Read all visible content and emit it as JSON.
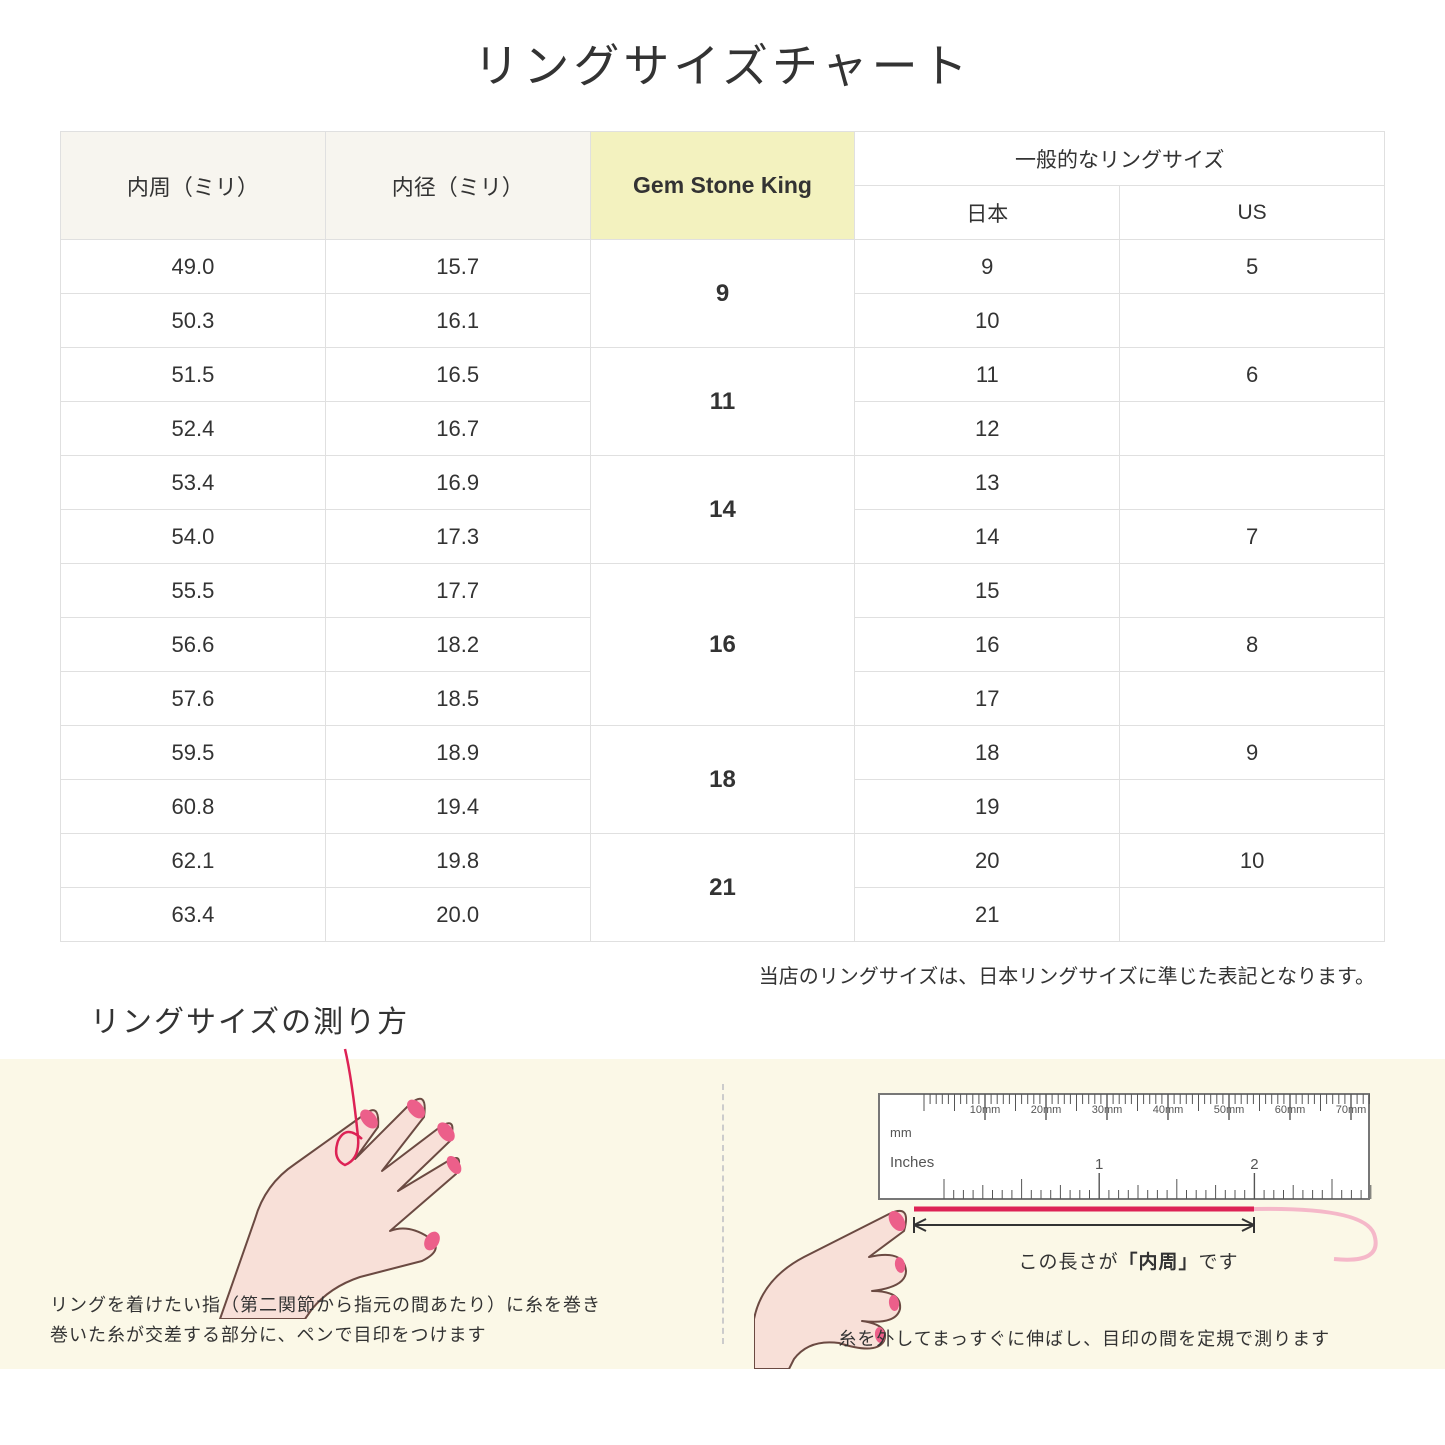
{
  "title": "リングサイズチャート",
  "table": {
    "headers": {
      "circumference": "内周（ミリ）",
      "diameter": "内径（ミリ）",
      "gsk": "Gem Stone King",
      "general": "一般的なリングサイズ",
      "japan": "日本",
      "us": "US"
    },
    "groups": [
      {
        "gsk": "9",
        "rows": [
          {
            "c": "49.0",
            "d": "15.7",
            "jp": "9",
            "us": "5"
          },
          {
            "c": "50.3",
            "d": "16.1",
            "jp": "10",
            "us": ""
          }
        ]
      },
      {
        "gsk": "11",
        "rows": [
          {
            "c": "51.5",
            "d": "16.5",
            "jp": "11",
            "us": "6"
          },
          {
            "c": "52.4",
            "d": "16.7",
            "jp": "12",
            "us": ""
          }
        ]
      },
      {
        "gsk": "14",
        "rows": [
          {
            "c": "53.4",
            "d": "16.9",
            "jp": "13",
            "us": ""
          },
          {
            "c": "54.0",
            "d": "17.3",
            "jp": "14",
            "us": "7"
          }
        ]
      },
      {
        "gsk": "16",
        "rows": [
          {
            "c": "55.5",
            "d": "17.7",
            "jp": "15",
            "us": ""
          },
          {
            "c": "56.6",
            "d": "18.2",
            "jp": "16",
            "us": "8"
          },
          {
            "c": "57.6",
            "d": "18.5",
            "jp": "17",
            "us": ""
          }
        ]
      },
      {
        "gsk": "18",
        "rows": [
          {
            "c": "59.5",
            "d": "18.9",
            "jp": "18",
            "us": "9"
          },
          {
            "c": "60.8",
            "d": "19.4",
            "jp": "19",
            "us": ""
          }
        ]
      },
      {
        "gsk": "21",
        "rows": [
          {
            "c": "62.1",
            "d": "19.8",
            "jp": "20",
            "us": "10"
          },
          {
            "c": "63.4",
            "d": "20.0",
            "jp": "21",
            "us": ""
          }
        ]
      }
    ]
  },
  "note": "当店のリングサイズは、日本リングサイズに準じた表記となります。",
  "measure": {
    "title": "リングサイズの測り方",
    "left_text": "リングを着けたい指（第二関節から指元の間あたり）に糸を巻き\n巻いた糸が交差する部分に、ペンで目印をつけます",
    "right_caption_prefix": "この長さが",
    "right_caption_bold": "「内周」",
    "right_caption_suffix": "です",
    "right_text": "糸を外してまっすぐに伸ばし、目印の間を定規で測ります",
    "ruler": {
      "mm_label": "mm",
      "inches_label": "Inches",
      "mm_ticks": [
        "10mm",
        "20mm",
        "30mm",
        "40mm",
        "50mm",
        "60mm",
        "70mm"
      ],
      "inch_ticks": [
        "1",
        "2"
      ]
    }
  },
  "colors": {
    "header_plain_bg": "#f7f5ef",
    "header_gsk_bg": "#f3f2bf",
    "instructions_bg": "#fbf8e7",
    "border": "#e0e0e0",
    "hand_fill": "#f8e0d8",
    "hand_stroke": "#6b4a42",
    "nail": "#ec5f8a",
    "thread": "#dd2255",
    "thread_light": "#f5b8c9",
    "ruler_border": "#777777",
    "ruler_text": "#555555"
  }
}
